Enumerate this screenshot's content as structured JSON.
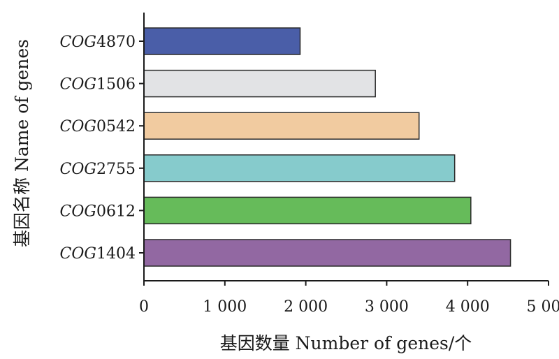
{
  "chart_data": {
    "type": "bar",
    "orientation": "horizontal",
    "categories": [
      "COG4870",
      "COG1506",
      "COG0542",
      "COG2755",
      "COG0612",
      "COG1404"
    ],
    "category_prefix": "COG",
    "values": [
      1930,
      2860,
      3400,
      3840,
      4040,
      4530
    ],
    "colors": [
      "#4a5ea8",
      "#e2e3e5",
      "#f1cba0",
      "#86cbcc",
      "#66bb5a",
      "#9268a2"
    ],
    "xlabel": "基因数量  Number of genes/个",
    "ylabel": "基因名称  Name of genes",
    "xlim": [
      0,
      5000
    ],
    "xticks": [
      0,
      1000,
      2000,
      3000,
      4000,
      5000
    ],
    "xtick_labels": [
      "0",
      "1 000",
      "2 000",
      "3 000",
      "4 000",
      "5 000"
    ],
    "grid": false
  }
}
